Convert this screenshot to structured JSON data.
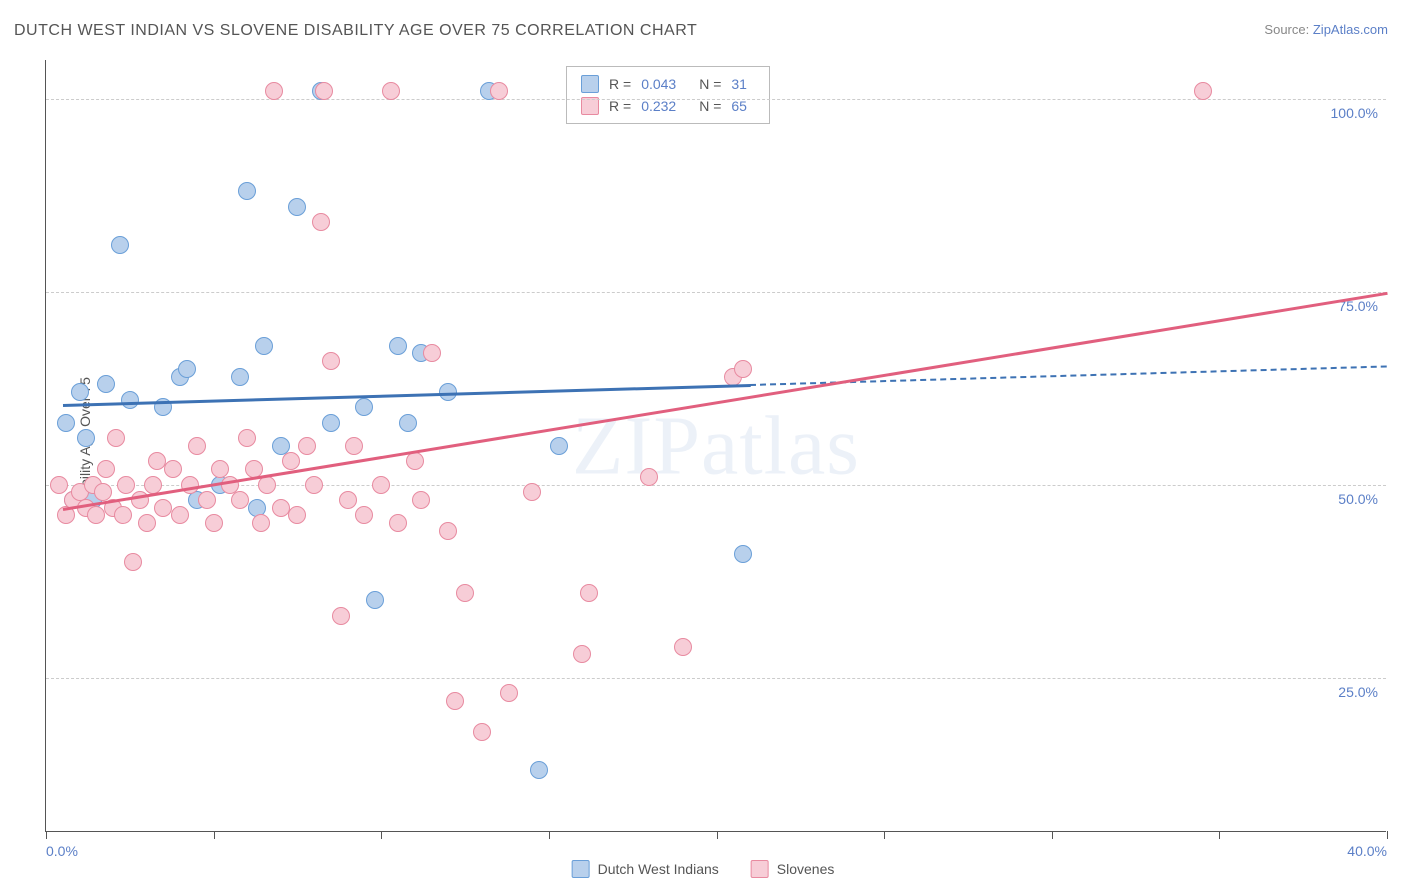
{
  "title": "DUTCH WEST INDIAN VS SLOVENE DISABILITY AGE OVER 75 CORRELATION CHART",
  "source_label": "Source:",
  "source_name": "ZipAtlas.com",
  "y_axis_title": "Disability Age Over 75",
  "watermark_zip": "ZIP",
  "watermark_atlas": "atlas",
  "chart": {
    "type": "scatter",
    "background_color": "#ffffff",
    "grid_color": "#cccccc",
    "axis_color": "#555555",
    "label_color": "#5b7fc7",
    "title_fontsize": 16,
    "label_fontsize": 14,
    "xlim": [
      0,
      40
    ],
    "ylim": [
      5,
      105
    ],
    "y_ticks": [
      25,
      50,
      75,
      100
    ],
    "y_tick_labels": [
      "25.0%",
      "50.0%",
      "75.0%",
      "100.0%"
    ],
    "x_ticks": [
      0,
      5,
      10,
      15,
      20,
      25,
      30,
      35,
      40
    ],
    "x_tick_labels_shown": {
      "0": "0.0%",
      "40": "40.0%"
    },
    "marker_radius": 9,
    "marker_border_width": 1.5,
    "line_width": 3,
    "series": [
      {
        "name": "Dutch West Indians",
        "key": "dutch",
        "fill": "#b8d0ec",
        "stroke": "#6a9fd8",
        "line_color": "#3d72b4",
        "R": "0.043",
        "N": "31",
        "regression": {
          "x1": 0.5,
          "y1": 60.5,
          "x2": 40,
          "y2": 65.5,
          "solid_to_x": 21
        },
        "points": [
          [
            0.6,
            58
          ],
          [
            0.8,
            48
          ],
          [
            1.0,
            62
          ],
          [
            1.2,
            56
          ],
          [
            1.4,
            48
          ],
          [
            2.2,
            81
          ],
          [
            2.5,
            61
          ],
          [
            4.0,
            64
          ],
          [
            4.2,
            65
          ],
          [
            4.5,
            48
          ],
          [
            5.2,
            50
          ],
          [
            5.8,
            64
          ],
          [
            6.0,
            88
          ],
          [
            6.3,
            47
          ],
          [
            6.5,
            68
          ],
          [
            7.5,
            86
          ],
          [
            8.2,
            101
          ],
          [
            8.5,
            58
          ],
          [
            9.5,
            60
          ],
          [
            9.8,
            35
          ],
          [
            10.5,
            68
          ],
          [
            10.8,
            58
          ],
          [
            11.2,
            67
          ],
          [
            13.2,
            101
          ],
          [
            15.3,
            55
          ],
          [
            14.7,
            13
          ],
          [
            20.8,
            41
          ],
          [
            1.8,
            63
          ],
          [
            3.5,
            60
          ],
          [
            7.0,
            55
          ],
          [
            12.0,
            62
          ]
        ]
      },
      {
        "name": "Slovenes",
        "key": "slovene",
        "fill": "#f7cdd7",
        "stroke": "#e88aa0",
        "line_color": "#e15f7e",
        "R": "0.232",
        "N": "65",
        "regression": {
          "x1": 0.5,
          "y1": 47,
          "x2": 40,
          "y2": 75,
          "solid_to_x": 40
        },
        "points": [
          [
            0.4,
            50
          ],
          [
            0.6,
            46
          ],
          [
            0.8,
            48
          ],
          [
            1.0,
            49
          ],
          [
            1.2,
            47
          ],
          [
            1.4,
            50
          ],
          [
            1.5,
            46
          ],
          [
            1.7,
            49
          ],
          [
            1.8,
            52
          ],
          [
            2.0,
            47
          ],
          [
            2.1,
            56
          ],
          [
            2.3,
            46
          ],
          [
            2.4,
            50
          ],
          [
            2.6,
            40
          ],
          [
            2.8,
            48
          ],
          [
            3.0,
            45
          ],
          [
            3.2,
            50
          ],
          [
            3.3,
            53
          ],
          [
            3.5,
            47
          ],
          [
            3.8,
            52
          ],
          [
            4.0,
            46
          ],
          [
            4.3,
            50
          ],
          [
            4.5,
            55
          ],
          [
            4.8,
            48
          ],
          [
            5.0,
            45
          ],
          [
            5.2,
            52
          ],
          [
            5.5,
            50
          ],
          [
            5.8,
            48
          ],
          [
            6.0,
            56
          ],
          [
            6.2,
            52
          ],
          [
            6.4,
            45
          ],
          [
            6.6,
            50
          ],
          [
            6.8,
            101
          ],
          [
            7.0,
            47
          ],
          [
            7.3,
            53
          ],
          [
            7.5,
            46
          ],
          [
            7.8,
            55
          ],
          [
            8.0,
            50
          ],
          [
            8.2,
            84
          ],
          [
            8.3,
            101
          ],
          [
            8.5,
            66
          ],
          [
            8.8,
            33
          ],
          [
            9.0,
            48
          ],
          [
            9.2,
            55
          ],
          [
            9.5,
            46
          ],
          [
            10.0,
            50
          ],
          [
            10.3,
            101
          ],
          [
            10.5,
            45
          ],
          [
            11.0,
            53
          ],
          [
            11.2,
            48
          ],
          [
            11.5,
            67
          ],
          [
            12.0,
            44
          ],
          [
            12.2,
            22
          ],
          [
            12.5,
            36
          ],
          [
            13.0,
            18
          ],
          [
            13.5,
            101
          ],
          [
            13.8,
            23
          ],
          [
            14.5,
            49
          ],
          [
            16.0,
            28
          ],
          [
            16.2,
            36
          ],
          [
            18.0,
            51
          ],
          [
            19.0,
            29
          ],
          [
            20.5,
            64
          ],
          [
            20.8,
            65
          ],
          [
            34.5,
            101
          ]
        ]
      }
    ]
  },
  "legend_labels": {
    "R": "R =",
    "N": "N ="
  },
  "bottom_legend": [
    {
      "key": "dutch",
      "label": "Dutch West Indians"
    },
    {
      "key": "slovene",
      "label": "Slovenes"
    }
  ]
}
